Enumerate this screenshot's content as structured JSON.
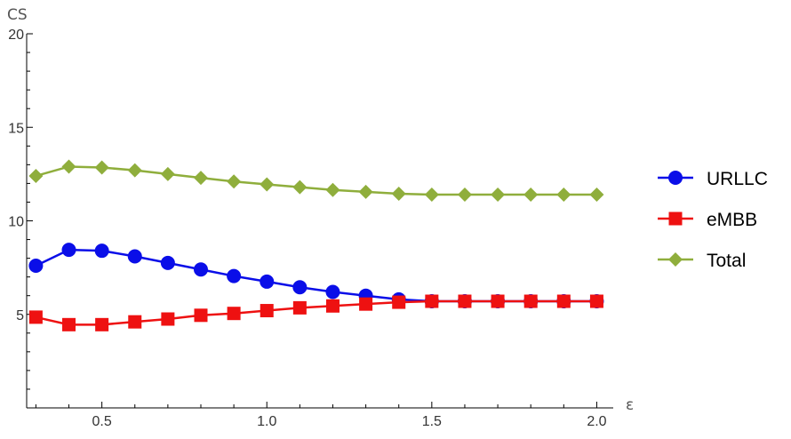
{
  "chart_data": {
    "type": "line",
    "ylabel": "CS",
    "xlabel": "ε",
    "xlim": [
      0.272,
      2.05
    ],
    "ylim": [
      0,
      20
    ],
    "x_ticks": [
      0.5,
      1.0,
      1.5,
      2.0
    ],
    "x_tick_labels": [
      "0.5",
      "1.0",
      "1.5",
      "2.0"
    ],
    "y_ticks": [
      5,
      10,
      15,
      20
    ],
    "y_tick_labels": [
      "5",
      "10",
      "15",
      "20"
    ],
    "grid": false,
    "legend_position": "right",
    "x": [
      0.3,
      0.4,
      0.5,
      0.6,
      0.7,
      0.8,
      0.9,
      1.0,
      1.1,
      1.2,
      1.3,
      1.4,
      1.5,
      1.6,
      1.7,
      1.8,
      1.9,
      2.0
    ],
    "series": [
      {
        "name": "URLLC",
        "color": "#0a0ee8",
        "marker": "circle",
        "values": [
          7.6,
          8.45,
          8.4,
          8.1,
          7.75,
          7.4,
          7.05,
          6.75,
          6.45,
          6.2,
          6.0,
          5.8,
          5.7,
          5.7,
          5.7,
          5.7,
          5.7,
          5.7
        ]
      },
      {
        "name": "eMBB",
        "color": "#ee1111",
        "marker": "square",
        "values": [
          4.85,
          4.45,
          4.45,
          4.6,
          4.75,
          4.95,
          5.05,
          5.2,
          5.35,
          5.45,
          5.55,
          5.65,
          5.7,
          5.7,
          5.7,
          5.7,
          5.7,
          5.7
        ]
      },
      {
        "name": "Total",
        "color": "#8fae3c",
        "marker": "diamond",
        "values": [
          12.4,
          12.9,
          12.85,
          12.7,
          12.5,
          12.3,
          12.1,
          11.95,
          11.8,
          11.65,
          11.55,
          11.45,
          11.4,
          11.4,
          11.4,
          11.4,
          11.4,
          11.4
        ]
      }
    ]
  }
}
